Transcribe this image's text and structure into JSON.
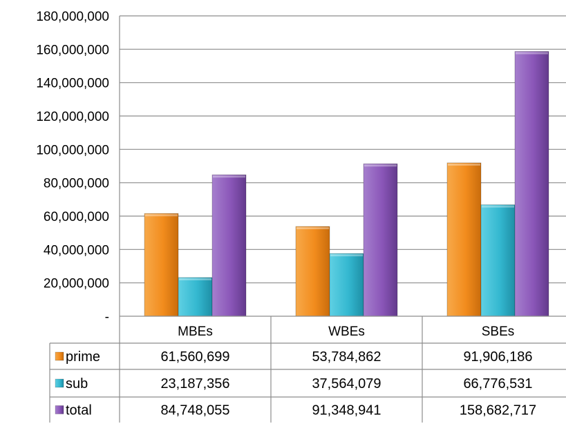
{
  "chart_data": {
    "type": "bar",
    "categories": [
      "MBEs",
      "WBEs",
      "SBEs"
    ],
    "series": [
      {
        "name": "prime",
        "color": "#f28c1d",
        "values": [
          61560699,
          53784862,
          91906186
        ],
        "labels": [
          "61,560,699",
          "53,784,862",
          "91,906,186"
        ]
      },
      {
        "name": "sub",
        "color": "#34b8d0",
        "values": [
          23187356,
          37564079,
          66776531
        ],
        "labels": [
          "23,187,356",
          "37,564,079",
          "66,776,531"
        ]
      },
      {
        "name": "total",
        "color": "#8a56b8",
        "values": [
          84748055,
          91348941,
          158682717
        ],
        "labels": [
          "84,748,055",
          "91,348,941",
          "158,682,717"
        ]
      }
    ],
    "ylim": [
      0,
      180000000
    ],
    "yticks": [
      0,
      20000000,
      40000000,
      60000000,
      80000000,
      100000000,
      120000000,
      140000000,
      160000000,
      180000000
    ],
    "ytick_labels": [
      "-",
      "20,000,000",
      "40,000,000",
      "60,000,000",
      "80,000,000",
      "100,000,000",
      "120,000,000",
      "140,000,000",
      "160,000,000",
      "180,000,000"
    ],
    "grid": true,
    "legend": "data table",
    "title": "",
    "xlabel": "",
    "ylabel": ""
  }
}
